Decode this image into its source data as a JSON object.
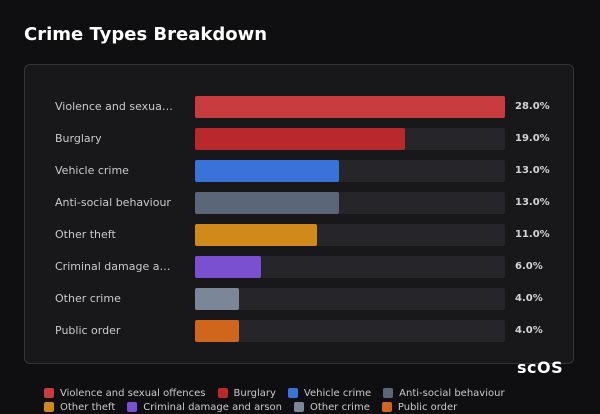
{
  "chart_data": {
    "type": "bar",
    "orientation": "horizontal",
    "title": "Crime Types Breakdown",
    "categories": [
      "Violence and sexual offences",
      "Burglary",
      "Vehicle crime",
      "Anti-social behaviour",
      "Other theft",
      "Criminal damage and arson",
      "Other crime",
      "Public order"
    ],
    "values": [
      28,
      19,
      13,
      13,
      11,
      6,
      4,
      4
    ],
    "value_labels": [
      "28.0%",
      "19.0%",
      "13.0%",
      "13.0%",
      "11.0%",
      "6.0%",
      "4.0%",
      "4.0%"
    ],
    "colors": [
      "#c83c3f",
      "#b9282b",
      "#3b72d9",
      "#5c6679",
      "#d08a1a",
      "#7a4fd0",
      "#7b8799",
      "#d0661c"
    ],
    "legend": true
  },
  "watermark": "scOS"
}
